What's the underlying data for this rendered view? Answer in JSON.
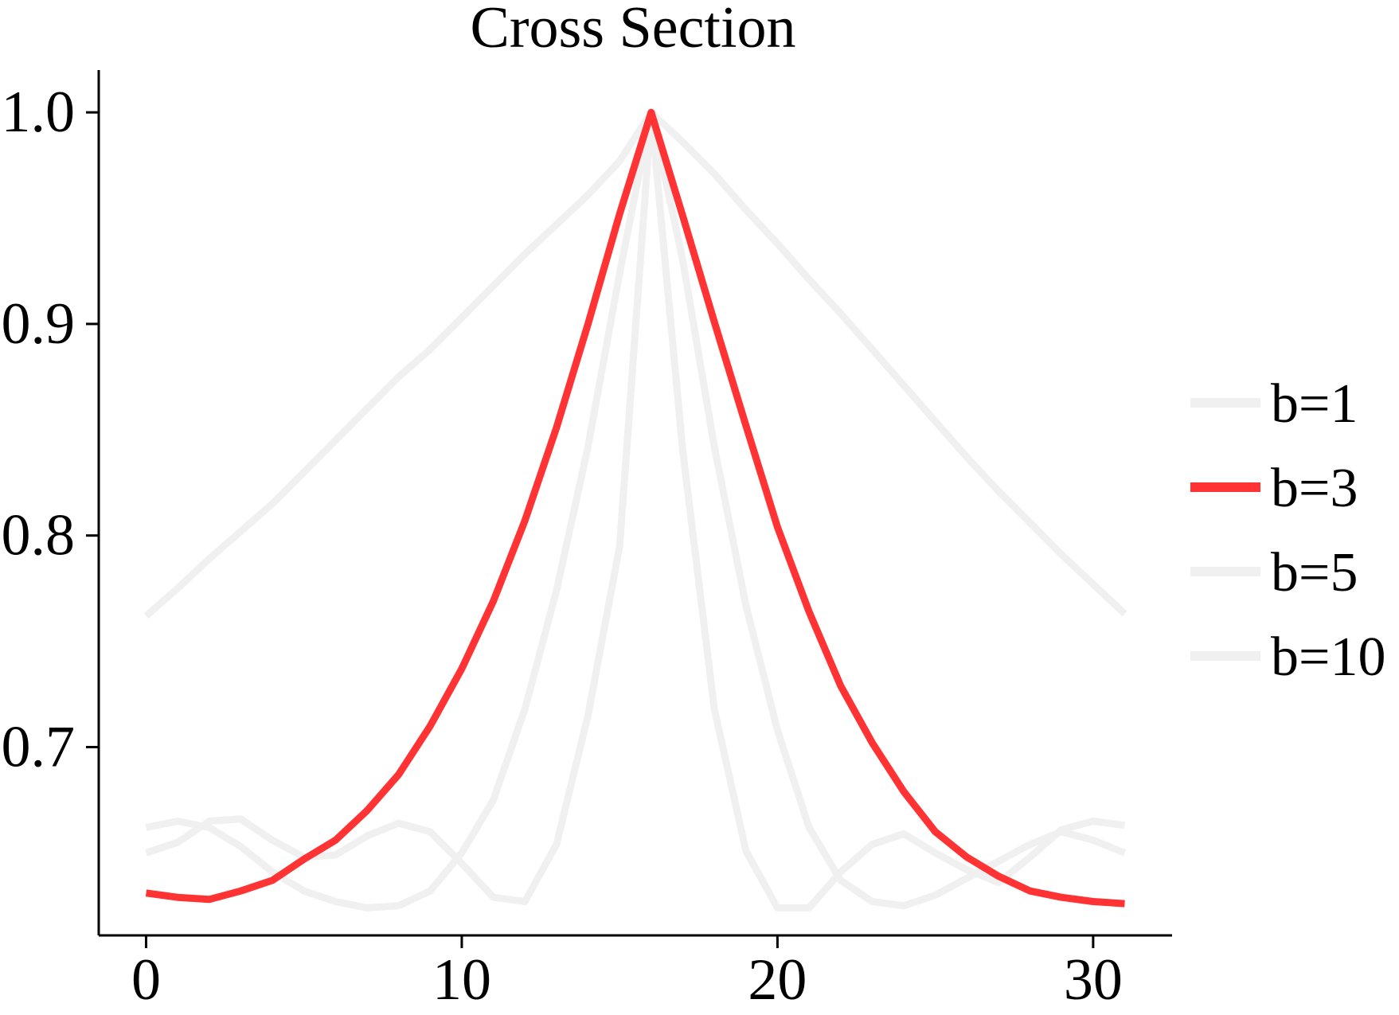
{
  "chart_data": {
    "type": "line",
    "title": "Cross Section",
    "xlabel": "",
    "ylabel": "",
    "xlim": [
      -1.5,
      32.5
    ],
    "ylim": [
      0.611,
      1.02
    ],
    "xticks": [
      0,
      10,
      20,
      30
    ],
    "xtick_labels": [
      "0",
      "10",
      "20",
      "30"
    ],
    "yticks": [
      0.7,
      0.8,
      0.9,
      1.0
    ],
    "ytick_labels": [
      "0.7",
      "0.8",
      "0.9",
      "1.0"
    ],
    "grid": false,
    "legend_position": "right",
    "x": [
      0,
      1,
      2,
      3,
      4,
      5,
      6,
      7,
      8,
      9,
      10,
      11,
      12,
      13,
      14,
      15,
      16,
      17,
      18,
      19,
      20,
      21,
      22,
      23,
      24,
      25,
      26,
      27,
      28,
      29,
      30,
      31
    ],
    "series": [
      {
        "name": "b=1",
        "color": "#f0f0f0",
        "highlighted": false,
        "values": [
          0.762,
          0.775,
          0.789,
          0.802,
          0.815,
          0.83,
          0.845,
          0.86,
          0.875,
          0.888,
          0.903,
          0.918,
          0.933,
          0.947,
          0.961,
          0.977,
          1.0,
          0.986,
          0.971,
          0.954,
          0.938,
          0.921,
          0.905,
          0.888,
          0.871,
          0.854,
          0.837,
          0.821,
          0.806,
          0.791,
          0.777,
          0.763
        ]
      },
      {
        "name": "b=3",
        "color": "#ff3333",
        "highlighted": true,
        "values": [
          0.631,
          0.629,
          0.628,
          0.632,
          0.637,
          0.647,
          0.656,
          0.67,
          0.687,
          0.71,
          0.737,
          0.769,
          0.807,
          0.851,
          0.9,
          0.952,
          1.0,
          0.951,
          0.901,
          0.852,
          0.804,
          0.764,
          0.729,
          0.702,
          0.679,
          0.66,
          0.648,
          0.639,
          0.632,
          0.629,
          0.627,
          0.626
        ]
      },
      {
        "name": "b=5",
        "color": "#f0f0f0",
        "highlighted": false,
        "values": [
          0.65,
          0.655,
          0.665,
          0.666,
          0.656,
          0.648,
          0.649,
          0.658,
          0.664,
          0.66,
          0.645,
          0.629,
          0.627,
          0.654,
          0.715,
          0.795,
          1.0,
          0.93,
          0.842,
          0.767,
          0.708,
          0.662,
          0.637,
          0.627,
          0.625,
          0.63,
          0.638,
          0.646,
          0.654,
          0.66,
          0.656,
          0.65
        ]
      },
      {
        "name": "b=10",
        "color": "#f0f0f0",
        "highlighted": false,
        "values": [
          0.662,
          0.665,
          0.662,
          0.653,
          0.641,
          0.632,
          0.627,
          0.624,
          0.625,
          0.632,
          0.65,
          0.675,
          0.718,
          0.774,
          0.842,
          0.924,
          1.0,
          0.84,
          0.718,
          0.651,
          0.624,
          0.624,
          0.641,
          0.654,
          0.659,
          0.65,
          0.642,
          0.636,
          0.648,
          0.661,
          0.665,
          0.663
        ]
      }
    ]
  }
}
